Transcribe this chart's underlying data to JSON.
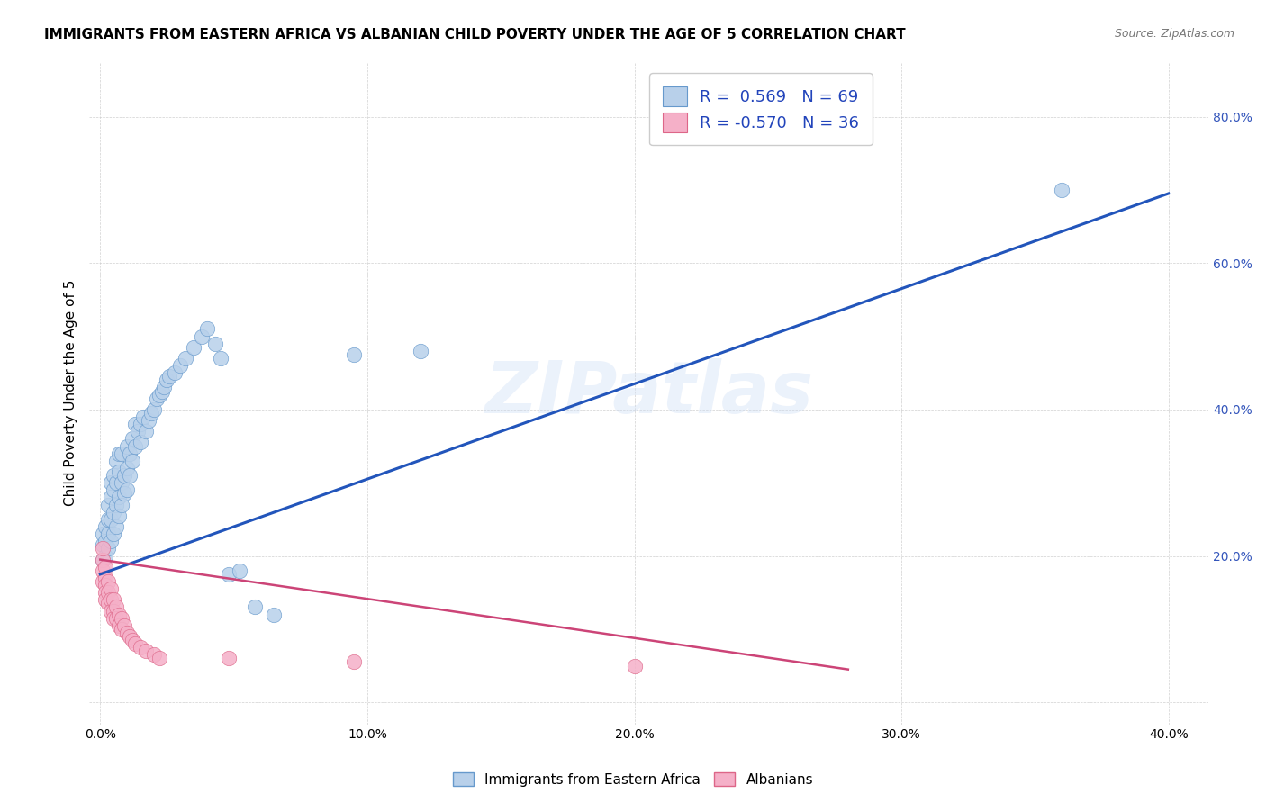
{
  "title": "IMMIGRANTS FROM EASTERN AFRICA VS ALBANIAN CHILD POVERTY UNDER THE AGE OF 5 CORRELATION CHART",
  "source": "Source: ZipAtlas.com",
  "ylabel": "Child Poverty Under the Age of 5",
  "xlim": [
    -0.004,
    0.415
  ],
  "ylim": [
    -0.03,
    0.875
  ],
  "r_blue": 0.569,
  "n_blue": 69,
  "r_pink": -0.57,
  "n_pink": 36,
  "blue_fill": "#b8d0ea",
  "blue_edge": "#6699cc",
  "pink_fill": "#f5b0c8",
  "pink_edge": "#dd6688",
  "blue_line": "#2255bb",
  "pink_line": "#cc4477",
  "watermark": "ZIPatlas",
  "legend_label_blue": "Immigrants from Eastern Africa",
  "legend_label_pink": "Albanians",
  "blue_x": [
    0.001,
    0.001,
    0.001,
    0.002,
    0.002,
    0.002,
    0.003,
    0.003,
    0.003,
    0.003,
    0.004,
    0.004,
    0.004,
    0.004,
    0.005,
    0.005,
    0.005,
    0.005,
    0.006,
    0.006,
    0.006,
    0.006,
    0.007,
    0.007,
    0.007,
    0.007,
    0.008,
    0.008,
    0.008,
    0.009,
    0.009,
    0.01,
    0.01,
    0.01,
    0.011,
    0.011,
    0.012,
    0.012,
    0.013,
    0.013,
    0.014,
    0.015,
    0.015,
    0.016,
    0.017,
    0.018,
    0.019,
    0.02,
    0.021,
    0.022,
    0.023,
    0.024,
    0.025,
    0.026,
    0.028,
    0.03,
    0.032,
    0.035,
    0.038,
    0.04,
    0.043,
    0.045,
    0.048,
    0.052,
    0.058,
    0.065,
    0.095,
    0.12,
    0.36
  ],
  "blue_y": [
    0.195,
    0.215,
    0.23,
    0.2,
    0.22,
    0.24,
    0.21,
    0.23,
    0.25,
    0.27,
    0.22,
    0.25,
    0.28,
    0.3,
    0.23,
    0.26,
    0.29,
    0.31,
    0.24,
    0.27,
    0.3,
    0.33,
    0.255,
    0.28,
    0.315,
    0.34,
    0.27,
    0.3,
    0.34,
    0.285,
    0.31,
    0.29,
    0.32,
    0.35,
    0.31,
    0.34,
    0.33,
    0.36,
    0.35,
    0.38,
    0.37,
    0.355,
    0.38,
    0.39,
    0.37,
    0.385,
    0.395,
    0.4,
    0.415,
    0.42,
    0.425,
    0.43,
    0.44,
    0.445,
    0.45,
    0.46,
    0.47,
    0.485,
    0.5,
    0.51,
    0.49,
    0.47,
    0.175,
    0.18,
    0.13,
    0.12,
    0.475,
    0.48,
    0.7
  ],
  "pink_x": [
    0.001,
    0.001,
    0.001,
    0.001,
    0.002,
    0.002,
    0.002,
    0.002,
    0.002,
    0.003,
    0.003,
    0.003,
    0.004,
    0.004,
    0.004,
    0.005,
    0.005,
    0.005,
    0.006,
    0.006,
    0.007,
    0.007,
    0.008,
    0.008,
    0.009,
    0.01,
    0.011,
    0.012,
    0.013,
    0.015,
    0.017,
    0.02,
    0.022,
    0.048,
    0.095,
    0.2
  ],
  "pink_y": [
    0.195,
    0.21,
    0.18,
    0.165,
    0.185,
    0.17,
    0.16,
    0.15,
    0.14,
    0.165,
    0.15,
    0.135,
    0.155,
    0.14,
    0.125,
    0.14,
    0.125,
    0.115,
    0.13,
    0.115,
    0.12,
    0.105,
    0.115,
    0.1,
    0.105,
    0.095,
    0.09,
    0.085,
    0.08,
    0.075,
    0.07,
    0.065,
    0.06,
    0.06,
    0.055,
    0.05
  ],
  "blue_regline_x": [
    0.0,
    0.4
  ],
  "blue_regline_y": [
    0.175,
    0.695
  ],
  "pink_regline_x": [
    0.0,
    0.28
  ],
  "pink_regline_y": [
    0.195,
    0.045
  ]
}
